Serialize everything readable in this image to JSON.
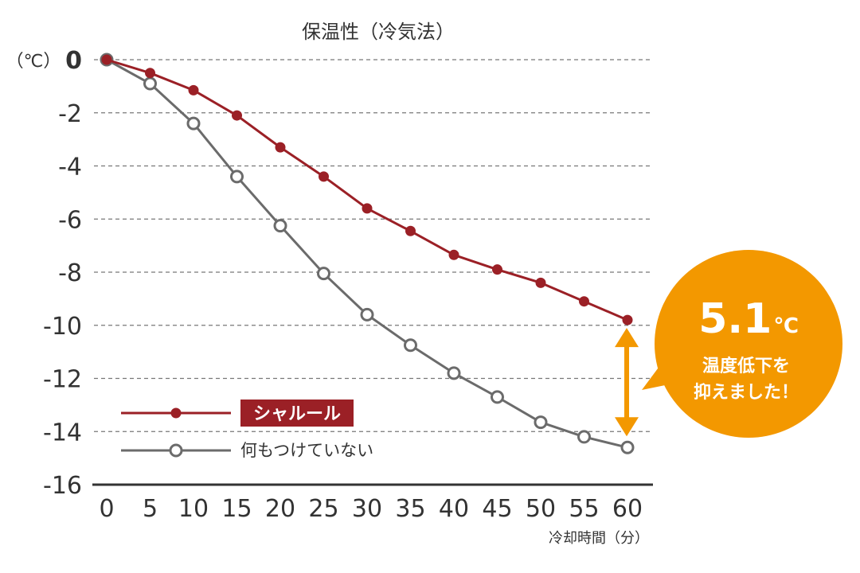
{
  "chart_data": {
    "type": "line",
    "title": "保温性（冷気法）",
    "ylabel": "（℃）",
    "xlabel": "冷却時間（分）",
    "x": [
      0,
      5,
      10,
      15,
      20,
      25,
      30,
      35,
      40,
      45,
      50,
      55,
      60
    ],
    "xlim": [
      0,
      60
    ],
    "ylim": [
      -16,
      0
    ],
    "yticks": [
      "0",
      "-2",
      "-4",
      "-6",
      "-8",
      "-10",
      "-12",
      "-14",
      "-16"
    ],
    "xticks": [
      "0",
      "5",
      "10",
      "15",
      "20",
      "25",
      "30",
      "35",
      "40",
      "45",
      "50",
      "55",
      "60"
    ],
    "grid": "horizontal dashed",
    "legend_position": "bottom-left",
    "series": [
      {
        "name": "シャルール",
        "color": "#9b2026",
        "marker": "filled-circle",
        "values": [
          0,
          -0.5,
          -1.15,
          -2.1,
          -3.3,
          -4.4,
          -5.6,
          -6.45,
          -7.35,
          -7.9,
          -8.4,
          -9.1,
          -9.8
        ]
      },
      {
        "name": "何もつけていない",
        "color": "#6b6b6b",
        "marker": "hollow-circle",
        "values": [
          0,
          -0.9,
          -2.4,
          -4.4,
          -6.25,
          -8.05,
          -9.6,
          -10.75,
          -11.8,
          -12.7,
          -13.65,
          -14.2,
          -14.6
        ]
      }
    ],
    "annotation": {
      "value": "5.1",
      "unit": "℃",
      "text_line1": "温度低下を",
      "text_line2": "抑えました！",
      "color": "#f39800"
    }
  }
}
